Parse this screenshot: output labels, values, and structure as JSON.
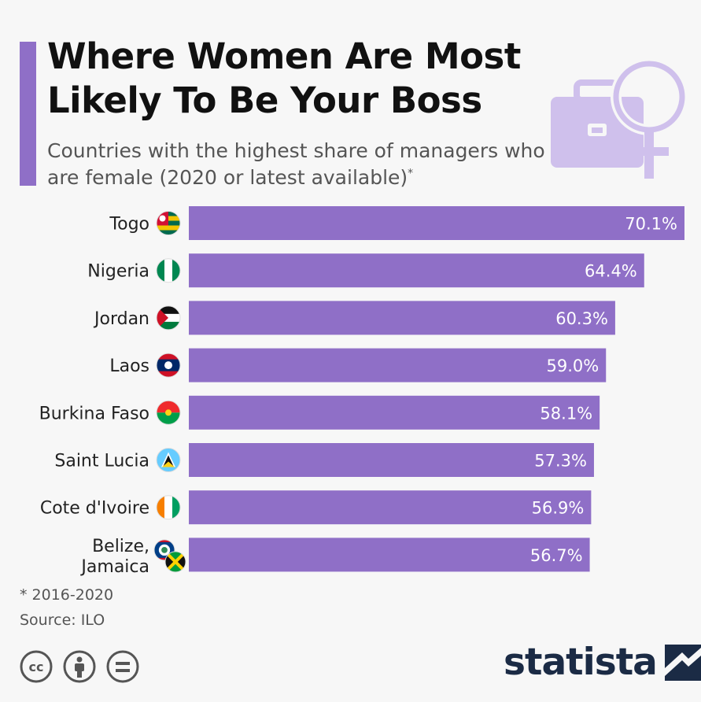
{
  "header": {
    "title": "Where Women Are Most Likely To Be Your Boss",
    "subtitle": "Countries with the highest share of managers who are female (2020 or latest available)",
    "subtitle_mark": "*"
  },
  "colors": {
    "accent": "#8f6fc7",
    "bar": "#8f6fc7",
    "deco": "#cfc0ec",
    "brand": "#1b2b45"
  },
  "chart_data": {
    "type": "bar",
    "orientation": "horizontal",
    "categories": [
      "Togo",
      "Nigeria",
      "Jordan",
      "Laos",
      "Burkina Faso",
      "Saint Lucia",
      "Cote d'Ivoire",
      "Belize,\nJamaica"
    ],
    "values": [
      70.1,
      64.4,
      60.3,
      59.0,
      58.1,
      57.3,
      56.9,
      56.7
    ],
    "value_labels": [
      "70.1%",
      "64.4%",
      "60.3%",
      "59.0%",
      "58.1%",
      "57.3%",
      "56.9%",
      "56.7%"
    ],
    "unit": "%",
    "grid": false,
    "legend": "none"
  },
  "footer": {
    "note": "* 2016-2020",
    "source": "Source: ILO",
    "brand": "statista"
  },
  "icons": [
    "briefcase-icon",
    "female-symbol-icon",
    "creative-commons-icon",
    "attribution-icon",
    "no-derivatives-icon",
    "statista-logo-icon"
  ]
}
